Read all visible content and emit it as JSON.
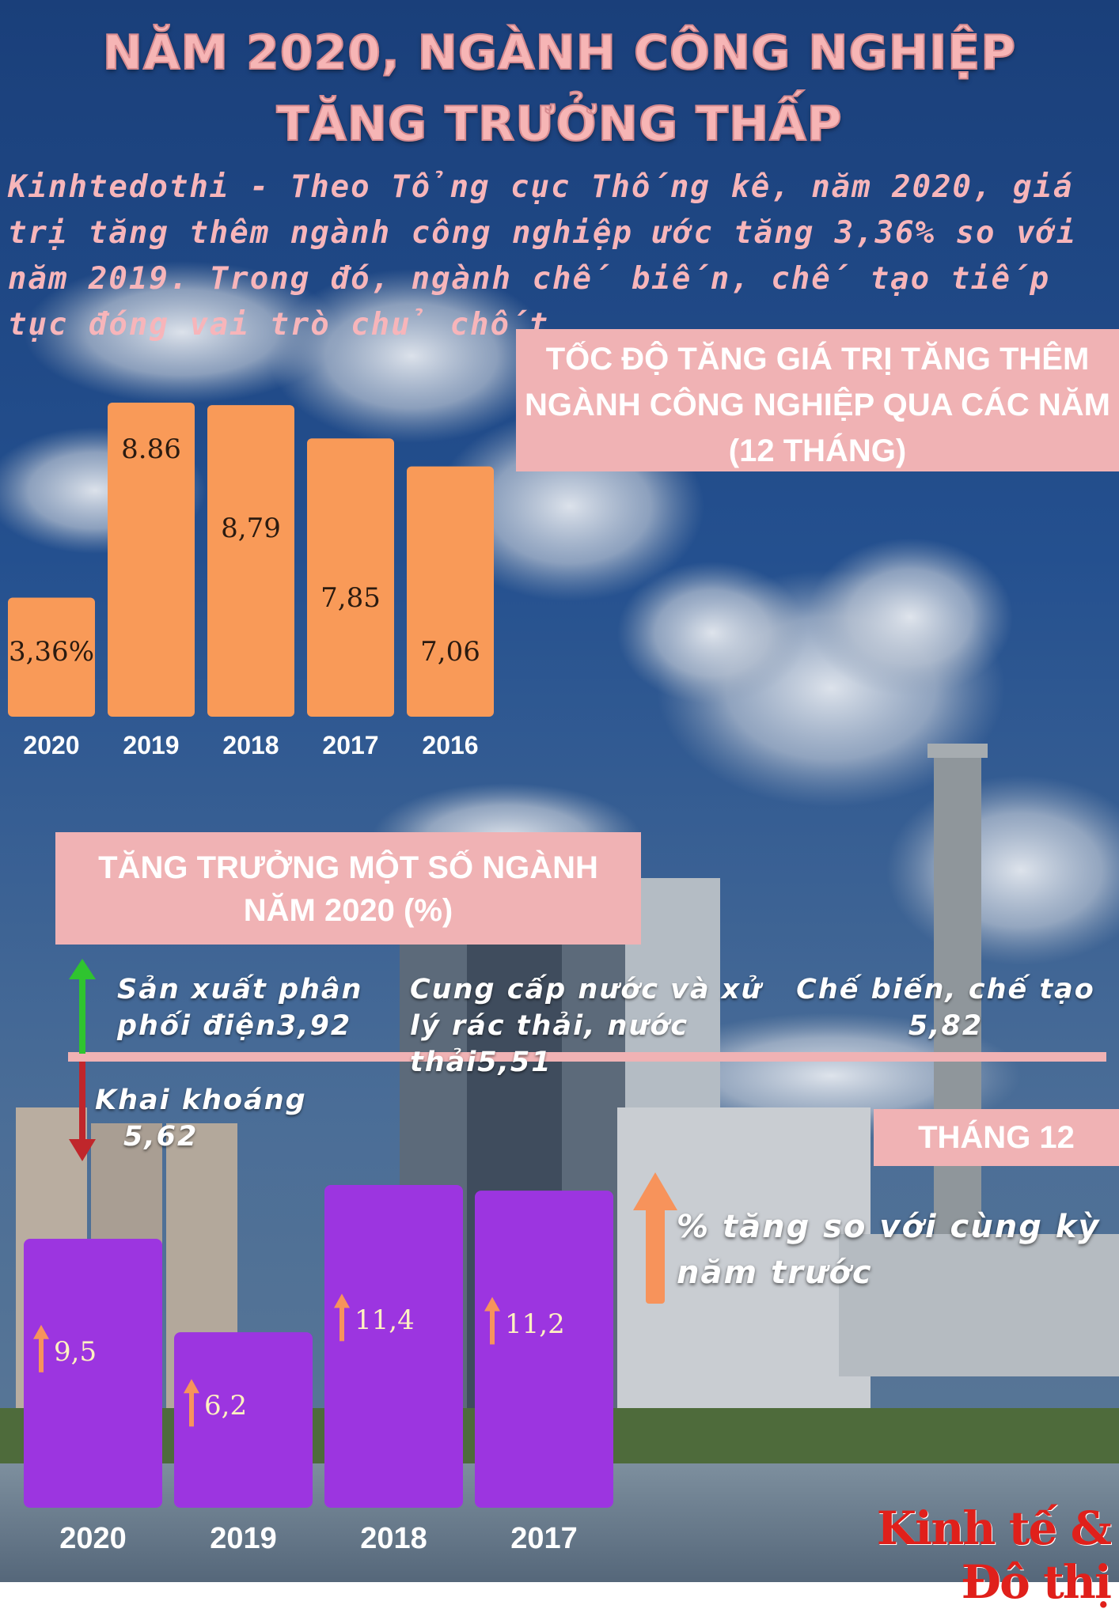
{
  "title": {
    "line1": "NĂM 2020, NGÀNH CÔNG NGHIỆP",
    "line2": "TĂNG TRƯỞNG THẤP"
  },
  "intro": "Kinhtedothi - Theo Tổng cục Thống kê, năm 2020, giá trị tăng thêm ngành công nghiệp ước tăng 3,36% so với năm 2019. Trong đó, ngành chế biến, chế tạo tiếp tục đóng vai trò chủ chốt.",
  "colors": {
    "orange_bar": "#f99a58",
    "purple_bar": "#9c35e0",
    "pink_box": "#f0b2b4",
    "title_pink": "#f6b5b5",
    "arrow_orange": "#f7935b",
    "arrow_green": "#2fc42f",
    "arrow_red": "#c0262b",
    "logo_red": "#e0201b"
  },
  "chart_data": [
    {
      "type": "bar",
      "title": "TỐC ĐỘ TĂNG GIÁ TRỊ TĂNG THÊM NGÀNH CÔNG NGHIỆP QUA CÁC NĂM (12 THÁNG)",
      "title_lines": [
        "TỐC ĐỘ TĂNG GIÁ TRỊ TĂNG THÊM",
        "NGÀNH CÔNG NGHIỆP QUA CÁC NĂM",
        "(12 THÁNG)"
      ],
      "categories": [
        "2020",
        "2019",
        "2018",
        "2017",
        "2016"
      ],
      "values": [
        3.36,
        8.86,
        8.79,
        7.85,
        7.06
      ],
      "labels": [
        "3,36%",
        "8.86",
        "8,79",
        "7,85",
        "7,06"
      ],
      "color": "#f99a58"
    },
    {
      "type": "table",
      "title": "TĂNG TRƯỞNG MỘT SỐ NGÀNH NĂM 2020 (%)",
      "title_lines": [
        "TĂNG TRƯỞNG MỘT SỐ NGÀNH",
        "NĂM 2020 (%)"
      ],
      "rows": [
        {
          "name": "Sản xuất phân phối điện",
          "value": 3.92,
          "lines": [
            "Sản xuất phân",
            "phối điện3,92"
          ],
          "direction": "up"
        },
        {
          "name": "Cung cấp nước và xử lý rác thải, nước thải",
          "value": 5.51,
          "lines": [
            "Cung cấp nước và xử",
            "lý rác thải, nước thải5,51"
          ],
          "direction": "up"
        },
        {
          "name": "Chế biến, chế tạo",
          "value": 5.82,
          "lines": [
            "Chế biến, chế tạo",
            "5,82"
          ],
          "direction": "up"
        },
        {
          "name": "Khai khoáng",
          "value": -5.62,
          "lines": [
            "Khai khoáng",
            "5,62"
          ],
          "direction": "down"
        }
      ]
    },
    {
      "type": "bar",
      "title": "THÁNG 12",
      "note": "% tăng so với cùng kỳ năm trước",
      "note_lines": [
        "% tăng so với cùng kỳ",
        "năm trước"
      ],
      "categories": [
        "2020",
        "2019",
        "2018",
        "2017"
      ],
      "values": [
        9.5,
        6.2,
        11.4,
        11.2
      ],
      "labels": [
        "9,5",
        "6,2",
        "11,4",
        "11,2"
      ],
      "color": "#9c35e0"
    }
  ],
  "logo": "Kinh tế & Đô thị"
}
